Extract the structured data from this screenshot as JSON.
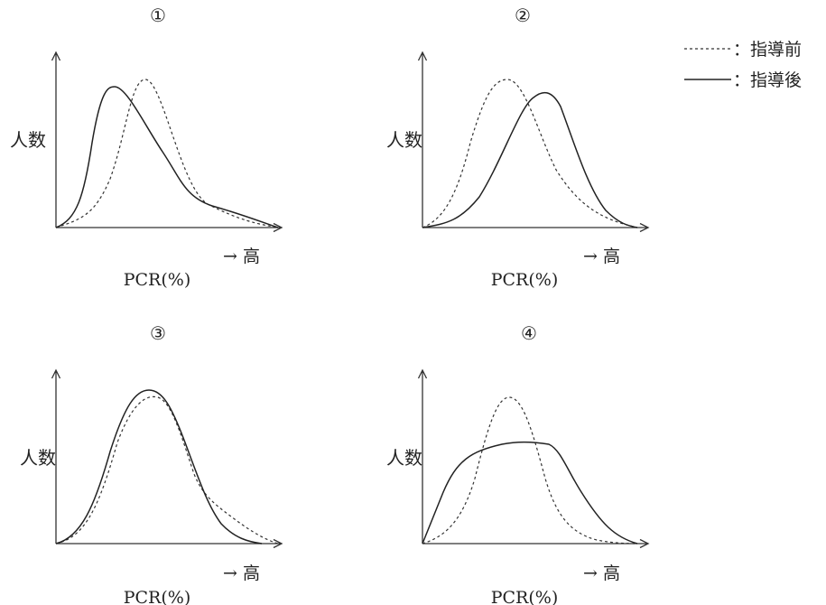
{
  "legend": [
    {
      "style": "dashed",
      "label": "：指導前"
    },
    {
      "style": "solid",
      "label": "：指導後"
    }
  ],
  "chart_data": [
    {
      "type": "line",
      "title": "①",
      "ylabel": "人数",
      "xlabel": "PCR(%)",
      "x_direction_label": "→ 高",
      "series": [
        {
          "name": "指導前",
          "style": "dashed",
          "peak_x": 0.42,
          "peak_y": 0.86
        },
        {
          "name": "指導後",
          "style": "solid",
          "peak_x": 0.28,
          "peak_y": 0.9
        }
      ]
    },
    {
      "type": "line",
      "title": "②",
      "ylabel": "人数",
      "xlabel": "PCR(%)",
      "x_direction_label": "→ 高",
      "series": [
        {
          "name": "指導前",
          "style": "dashed",
          "peak_x": 0.38,
          "peak_y": 0.91
        },
        {
          "name": "指導後",
          "style": "solid",
          "peak_x": 0.58,
          "peak_y": 0.86
        }
      ]
    },
    {
      "type": "line",
      "title": "③",
      "ylabel": "人数",
      "xlabel": "PCR(%)",
      "x_direction_label": "→ 高",
      "series": [
        {
          "name": "指導前",
          "style": "dashed",
          "peak_x": 0.4,
          "peak_y": 0.88
        },
        {
          "name": "指導後",
          "style": "solid",
          "peak_x": 0.4,
          "peak_y": 0.92
        }
      ]
    },
    {
      "type": "line",
      "title": "④",
      "ylabel": "人数",
      "xlabel": "PCR(%)",
      "x_direction_label": "→ 高",
      "series": [
        {
          "name": "指導前",
          "style": "dashed",
          "peak_x": 0.4,
          "peak_y": 0.88
        },
        {
          "name": "指導後",
          "style": "solid",
          "peak_x": 0.45,
          "peak_y": 0.58
        }
      ]
    }
  ]
}
